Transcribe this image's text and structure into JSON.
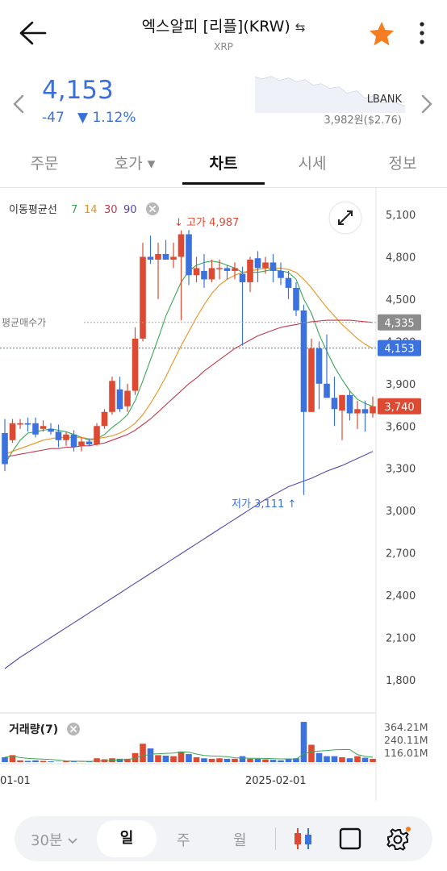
{
  "header": {
    "title": "엑스알피 [리플](KRW)",
    "switch_symbol": "⇆",
    "subtitle": "XRP"
  },
  "price": {
    "current": "4,153",
    "change": "-47",
    "change_pct": "▼ 1.12%",
    "exchange_name": "LBANK",
    "exchange_price": "3,982원($2.76)"
  },
  "tabs": [
    {
      "label": "주문"
    },
    {
      "label": "호가 ▾"
    },
    {
      "label": "차트"
    },
    {
      "label": "시세"
    },
    {
      "label": "정보"
    }
  ],
  "ma_legend": {
    "label": "이동평균선",
    "periods": [
      "7",
      "14",
      "30",
      "90"
    ],
    "colors": [
      "#3aa655",
      "#e8921e",
      "#c0394b",
      "#5848a8"
    ]
  },
  "annotations": {
    "high": "↓ 고가 4,987",
    "low": "저가 3,111 ↑",
    "avg_buy": "평균매수가"
  },
  "price_labels": {
    "avg_buy_value": "4,335",
    "current_value": "4,153",
    "last_close": "3,740"
  },
  "volume": {
    "label": "거래량(7)",
    "ticks": [
      "364.21M",
      "240.11M",
      "116.01M"
    ]
  },
  "x_axis": {
    "labels": [
      "01-01",
      "2025-02-01"
    ]
  },
  "toolbar": {
    "interval": "30분",
    "day": "일",
    "week": "주",
    "month": "월"
  },
  "colors": {
    "up": "#dc4a33",
    "down": "#3b72de",
    "accent": "#3b6fd8",
    "star": "#f57c1f"
  },
  "chart_data": {
    "type": "candlestick",
    "ylim": [
      1500,
      5200
    ],
    "yticks": [
      "5,100",
      "4,800",
      "4,500",
      "4,200",
      "3,900",
      "3,600",
      "3,300",
      "3,000",
      "2,700",
      "2,400",
      "2,100",
      "1,800"
    ],
    "ytick_values": [
      5100,
      4800,
      4500,
      4200,
      3900,
      3600,
      3300,
      3000,
      2700,
      2400,
      2100,
      1800
    ],
    "candles": [
      [
        3550,
        3650,
        3280,
        3330
      ],
      [
        3500,
        3650,
        3480,
        3620
      ],
      [
        3610,
        3650,
        3580,
        3620
      ],
      [
        3620,
        3660,
        3560,
        3610
      ],
      [
        3620,
        3660,
        3520,
        3540
      ],
      [
        3580,
        3640,
        3560,
        3600
      ],
      [
        3580,
        3620,
        3540,
        3560
      ],
      [
        3560,
        3610,
        3450,
        3500
      ],
      [
        3500,
        3560,
        3460,
        3540
      ],
      [
        3540,
        3570,
        3420,
        3450
      ],
      [
        3460,
        3520,
        3420,
        3490
      ],
      [
        3490,
        3510,
        3460,
        3470
      ],
      [
        3470,
        3620,
        3460,
        3600
      ],
      [
        3600,
        3720,
        3580,
        3700
      ],
      [
        3700,
        3950,
        3680,
        3920
      ],
      [
        3860,
        3950,
        3700,
        3720
      ],
      [
        3740,
        3900,
        3700,
        3850
      ],
      [
        3850,
        4300,
        3820,
        4220
      ],
      [
        4220,
        4900,
        4200,
        4800
      ],
      [
        4800,
        4950,
        4750,
        4780
      ],
      [
        4780,
        4900,
        4500,
        4820
      ],
      [
        4820,
        4920,
        4780,
        4780
      ],
      [
        4780,
        4900,
        4720,
        4800
      ],
      [
        4800,
        4987,
        4350,
        4960
      ],
      [
        4960,
        4990,
        4600,
        4670
      ],
      [
        4670,
        4800,
        4620,
        4720
      ],
      [
        4700,
        4820,
        4580,
        4640
      ],
      [
        4640,
        4780,
        4620,
        4720
      ],
      [
        4720,
        4780,
        4640,
        4720
      ],
      [
        4720,
        4740,
        4640,
        4700
      ],
      [
        4700,
        4760,
        4640,
        4720
      ],
      [
        4680,
        4730,
        4170,
        4620
      ],
      [
        4620,
        4800,
        4550,
        4780
      ],
      [
        4790,
        4840,
        4620,
        4720
      ],
      [
        4720,
        4800,
        4680,
        4760
      ],
      [
        4760,
        4820,
        4620,
        4700
      ],
      [
        4700,
        4760,
        4600,
        4650
      ],
      [
        4650,
        4700,
        4500,
        4580
      ],
      [
        4580,
        4620,
        4380,
        4420
      ],
      [
        4420,
        4460,
        3111,
        3700
      ],
      [
        3700,
        4220,
        3700,
        4150
      ],
      [
        4150,
        4200,
        3720,
        3900
      ],
      [
        3900,
        4250,
        3820,
        3800
      ],
      [
        3800,
        3950,
        3600,
        3720
      ],
      [
        3710,
        3820,
        3500,
        3820
      ],
      [
        3820,
        3850,
        3640,
        3690
      ],
      [
        3690,
        3780,
        3580,
        3720
      ],
      [
        3720,
        3780,
        3560,
        3690
      ],
      [
        3690,
        3810,
        3660,
        3740
      ]
    ],
    "ma_series": [
      {
        "name": "7",
        "values": [
          3330,
          3420,
          3500,
          3550,
          3560,
          3570,
          3580,
          3570,
          3560,
          3540,
          3520,
          3500,
          3510,
          3540,
          3590,
          3630,
          3680,
          3780,
          3920,
          4070,
          4220,
          4380,
          4500,
          4620,
          4700,
          4740,
          4760,
          4770,
          4760,
          4740,
          4720,
          4690,
          4690,
          4690,
          4700,
          4710,
          4700,
          4690,
          4640,
          4500,
          4400,
          4250,
          4130,
          4020,
          3930,
          3850,
          3790,
          3760,
          3740
        ]
      },
      {
        "name": "14",
        "values": [
          3400,
          3420,
          3440,
          3460,
          3480,
          3500,
          3510,
          3520,
          3520,
          3520,
          3520,
          3510,
          3510,
          3520,
          3530,
          3550,
          3580,
          3620,
          3680,
          3760,
          3850,
          3950,
          4060,
          4170,
          4270,
          4370,
          4460,
          4540,
          4600,
          4640,
          4670,
          4690,
          4700,
          4710,
          4720,
          4720,
          4720,
          4710,
          4690,
          4640,
          4580,
          4510,
          4440,
          4380,
          4320,
          4270,
          4220,
          4180,
          4150
        ]
      },
      {
        "name": "30",
        "values": [
          3380,
          3390,
          3400,
          3410,
          3420,
          3430,
          3440,
          3440,
          3450,
          3450,
          3460,
          3460,
          3470,
          3480,
          3500,
          3520,
          3540,
          3570,
          3610,
          3650,
          3700,
          3750,
          3800,
          3850,
          3900,
          3940,
          3990,
          4030,
          4070,
          4110,
          4150,
          4180,
          4210,
          4240,
          4260,
          4280,
          4300,
          4310,
          4320,
          4330,
          4340,
          4345,
          4350,
          4350,
          4350,
          4350,
          4345,
          4340,
          4335
        ]
      },
      {
        "name": "90",
        "values": [
          1880,
          1920,
          1960,
          1995,
          2030,
          2065,
          2100,
          2135,
          2170,
          2205,
          2240,
          2275,
          2310,
          2345,
          2380,
          2415,
          2450,
          2485,
          2520,
          2555,
          2590,
          2625,
          2660,
          2695,
          2730,
          2765,
          2800,
          2835,
          2870,
          2905,
          2940,
          2975,
          3010,
          3045,
          3080,
          3110,
          3140,
          3170,
          3190,
          3210,
          3230,
          3255,
          3280,
          3300,
          3320,
          3345,
          3370,
          3395,
          3420
        ]
      }
    ],
    "volume_ticks": [
      364.21,
      240.11,
      116.01
    ],
    "volume": [
      70,
      90,
      40,
      35,
      40,
      35,
      30,
      25,
      35,
      30,
      25,
      30,
      60,
      50,
      60,
      55,
      55,
      110,
      200,
      155,
      90,
      85,
      80,
      125,
      100,
      70,
      60,
      55,
      60,
      55,
      55,
      80,
      55,
      55,
      50,
      45,
      40,
      55,
      60,
      410,
      190,
      110,
      80,
      80,
      70,
      60,
      80,
      65,
      55
    ]
  }
}
